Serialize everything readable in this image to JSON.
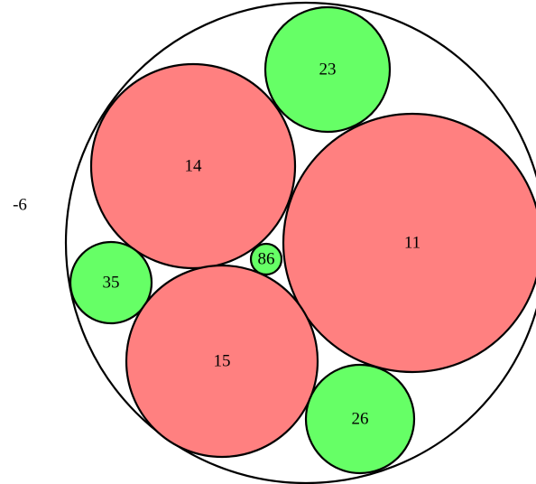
{
  "label": "-6",
  "nodes": [
    {
      "label": "23",
      "color": "#66ff66"
    },
    {
      "label": "14",
      "color": "#ff8080"
    },
    {
      "label": "11",
      "color": "#ff8080"
    },
    {
      "label": "35",
      "color": "#66ff66"
    },
    {
      "label": "86",
      "color": "#66ff66"
    },
    {
      "label": "15",
      "color": "#ff8080"
    },
    {
      "label": "26",
      "color": "#66ff66"
    }
  ]
}
